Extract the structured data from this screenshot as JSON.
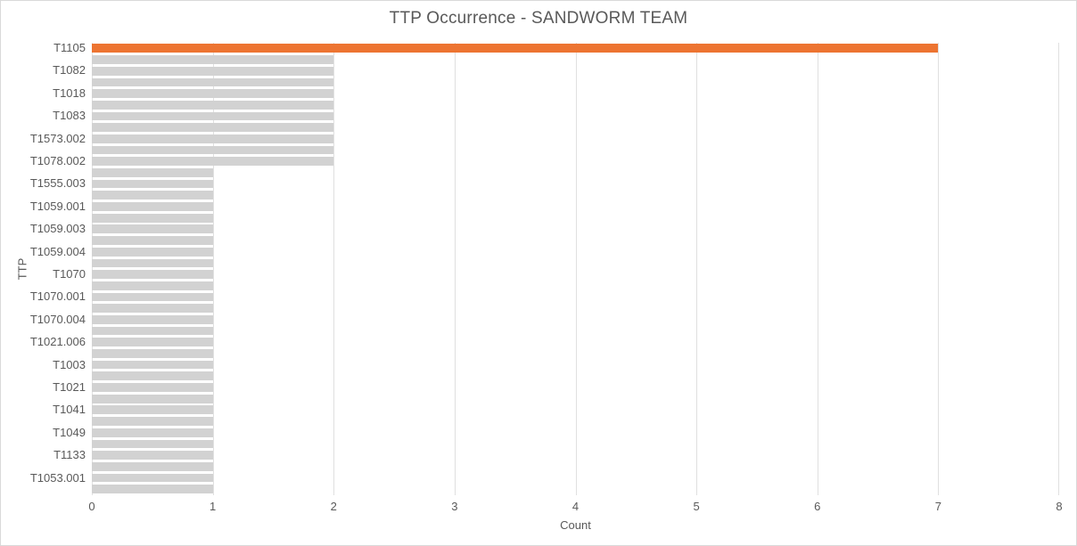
{
  "chart_data": {
    "type": "bar",
    "orientation": "horizontal",
    "title": "TTP Occurrence - SANDWORM TEAM",
    "xlabel": "Count",
    "ylabel": "TTP",
    "xlim": [
      0,
      8
    ],
    "x_ticks": [
      0,
      1,
      2,
      3,
      4,
      5,
      6,
      7,
      8
    ],
    "grid": true,
    "legend": "none",
    "colors": {
      "bar_default": "#d2d2d2",
      "bar_highlight": "#ed7431",
      "gridline": "#e0e0e0",
      "text": "#595959",
      "frame_border": "#d9d9d9",
      "background": "#ffffff"
    },
    "bars": [
      {
        "label": "T1105",
        "value": 7,
        "highlight": true
      },
      {
        "label": "",
        "value": 2
      },
      {
        "label": "T1082",
        "value": 2
      },
      {
        "label": "",
        "value": 2
      },
      {
        "label": "T1018",
        "value": 2
      },
      {
        "label": "",
        "value": 2
      },
      {
        "label": "T1083",
        "value": 2
      },
      {
        "label": "",
        "value": 2
      },
      {
        "label": "T1573.002",
        "value": 2
      },
      {
        "label": "",
        "value": 2
      },
      {
        "label": "T1078.002",
        "value": 2
      },
      {
        "label": "",
        "value": 1
      },
      {
        "label": "T1555.003",
        "value": 1
      },
      {
        "label": "",
        "value": 1
      },
      {
        "label": "T1059.001",
        "value": 1
      },
      {
        "label": "",
        "value": 1
      },
      {
        "label": "T1059.003",
        "value": 1
      },
      {
        "label": "",
        "value": 1
      },
      {
        "label": "T1059.004",
        "value": 1
      },
      {
        "label": "",
        "value": 1
      },
      {
        "label": "T1070",
        "value": 1
      },
      {
        "label": "",
        "value": 1
      },
      {
        "label": "T1070.001",
        "value": 1
      },
      {
        "label": "",
        "value": 1
      },
      {
        "label": "T1070.004",
        "value": 1
      },
      {
        "label": "",
        "value": 1
      },
      {
        "label": "T1021.006",
        "value": 1
      },
      {
        "label": "",
        "value": 1
      },
      {
        "label": "T1003",
        "value": 1
      },
      {
        "label": "",
        "value": 1
      },
      {
        "label": "T1021",
        "value": 1
      },
      {
        "label": "",
        "value": 1
      },
      {
        "label": "T1041",
        "value": 1
      },
      {
        "label": "",
        "value": 1
      },
      {
        "label": "T1049",
        "value": 1
      },
      {
        "label": "",
        "value": 1
      },
      {
        "label": "T1133",
        "value": 1
      },
      {
        "label": "",
        "value": 1
      },
      {
        "label": "T1053.001",
        "value": 1
      },
      {
        "label": "",
        "value": 1
      }
    ]
  }
}
